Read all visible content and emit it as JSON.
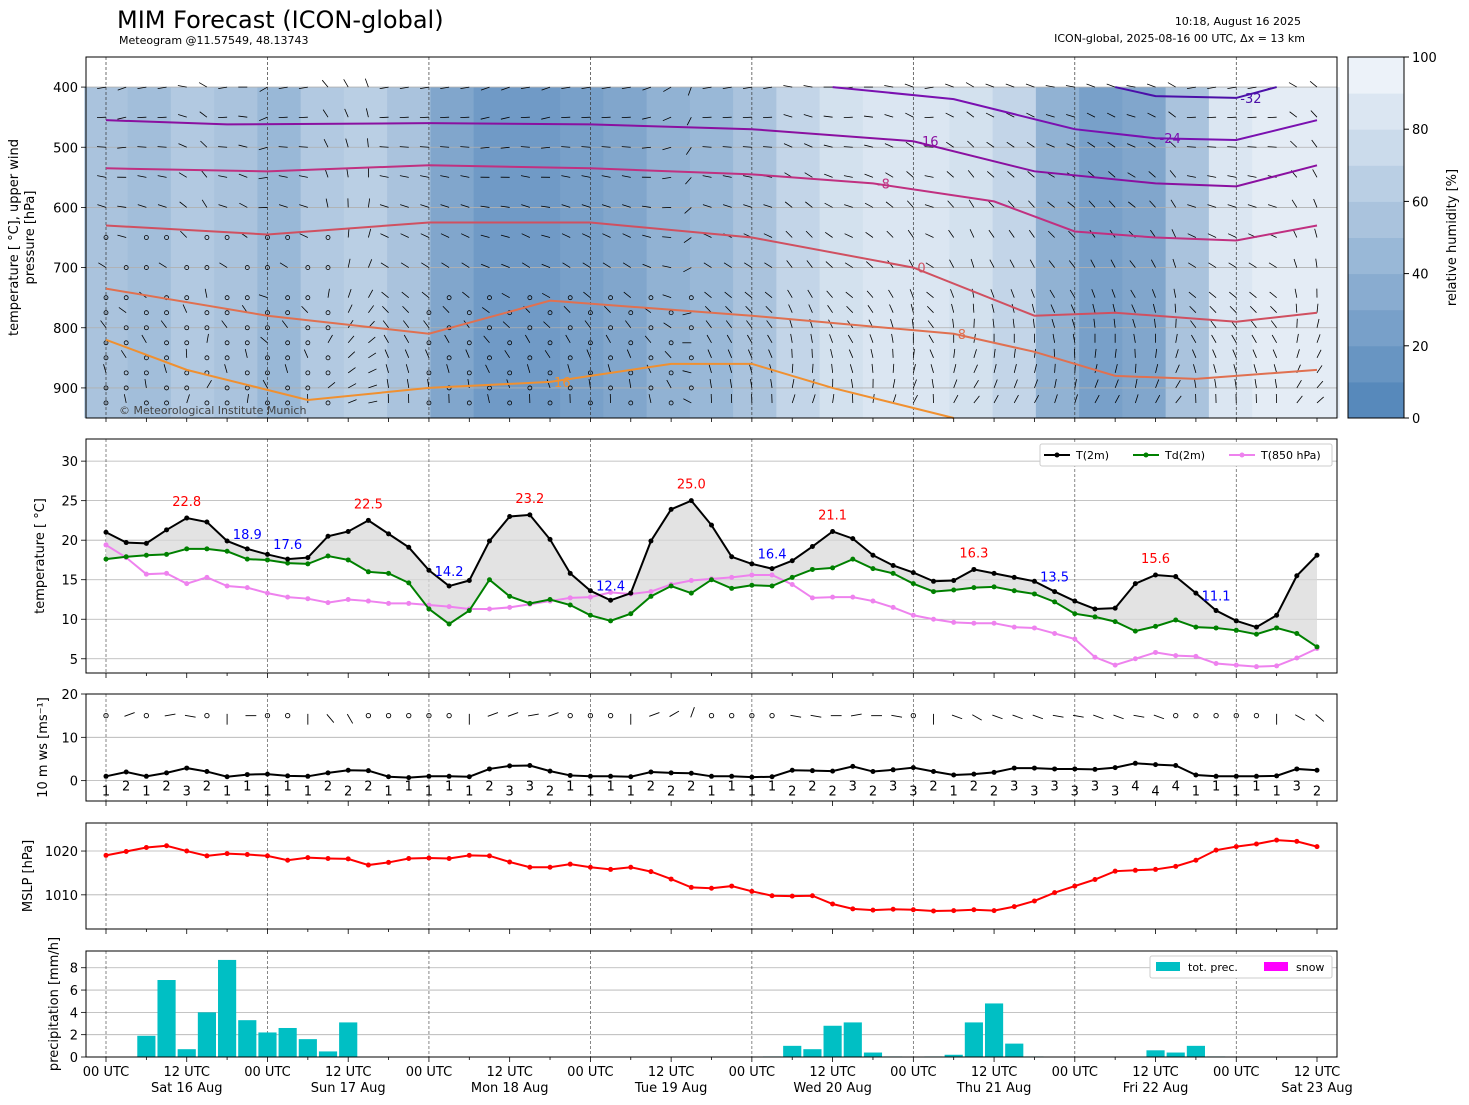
{
  "header": {
    "title": "MIM Forecast (ICON-global)",
    "subtitle": "Meteogram @11.57549, 48.13743",
    "run_time": "10:18, August 16 2025",
    "model_info": "ICON-global, 2025-08-16 00 UTC, Δx = 13 km"
  },
  "copyright": "© Meteorological Institute Munich",
  "colors": {
    "t2m": "#000000",
    "td2m": "#008000",
    "t850": "#ee82ee",
    "mslp": "#ff0000",
    "precip": "#00bfc4",
    "snow": "#ff00ff",
    "humidity_low": "#4f83b8",
    "humidity_high": "#f4f8fc",
    "max_label": "#ff0000",
    "min_label": "#0000ff"
  },
  "time_axis": {
    "tick_labels": [
      "00 UTC",
      "12 UTC",
      "00 UTC",
      "12 UTC",
      "00 UTC",
      "12 UTC",
      "00 UTC",
      "12 UTC",
      "00 UTC",
      "12 UTC",
      "00 UTC",
      "12 UTC",
      "00 UTC",
      "12 UTC",
      "00 UTC",
      "12 UTC"
    ],
    "day_labels": [
      "Sat 16 Aug",
      "Sun 17 Aug",
      "Mon 18 Aug",
      "Tue 19 Aug",
      "Wed 20 Aug",
      "Thu 21 Aug",
      "Fri 22 Aug",
      "Sat 23 Aug"
    ],
    "step_hours": 3,
    "range_hours": [
      0,
      180
    ]
  },
  "chart_data": [
    {
      "type": "heatmap",
      "ylabel": "temperature [ $^\\circ$C], upper wind\npressure [hPa]",
      "ylabel_lines": [
        "temperature [ °C], upper wind",
        "pressure [hPa]"
      ],
      "yticks": [
        400,
        500,
        600,
        700,
        800,
        900
      ],
      "ylim": [
        950,
        350
      ],
      "colorbar": {
        "label": "relative humidity [%]",
        "ticks": [
          0,
          20,
          40,
          60,
          80,
          100
        ],
        "range": [
          0,
          100
        ]
      },
      "humidity_columns": [
        55,
        50,
        60,
        55,
        45,
        60,
        65,
        55,
        30,
        20,
        20,
        25,
        30,
        40,
        45,
        55,
        70,
        80,
        85,
        85,
        80,
        70,
        40,
        25,
        30,
        55,
        85,
        90,
        90
      ],
      "isotherms": [
        {
          "label": "-32",
          "color": "#4b0fa8",
          "points": [
            [
              150,
              400
            ],
            [
              156,
              415
            ],
            [
              168,
              418
            ],
            [
              174,
              400
            ]
          ]
        },
        {
          "label": "-24",
          "color": "#7a10b0",
          "points": [
            [
              108,
              400
            ],
            [
              126,
              420
            ],
            [
              144,
              470
            ],
            [
              156,
              485
            ],
            [
              168,
              488
            ],
            [
              180,
              455
            ]
          ]
        },
        {
          "label": "-16",
          "color": "#8a10a0",
          "points": [
            [
              0,
              455
            ],
            [
              18,
              462
            ],
            [
              48,
              460
            ],
            [
              72,
              462
            ],
            [
              96,
              470
            ],
            [
              120,
              490
            ],
            [
              138,
              540
            ],
            [
              156,
              560
            ],
            [
              168,
              565
            ],
            [
              180,
              530
            ]
          ]
        },
        {
          "label": "-8",
          "color": "#c03080",
          "points": [
            [
              0,
              535
            ],
            [
              24,
              540
            ],
            [
              48,
              530
            ],
            [
              72,
              535
            ],
            [
              96,
              545
            ],
            [
              114,
              560
            ],
            [
              132,
              590
            ],
            [
              144,
              640
            ],
            [
              156,
              650
            ],
            [
              168,
              655
            ],
            [
              180,
              630
            ]
          ]
        },
        {
          "label": "0",
          "color": "#d05060",
          "points": [
            [
              0,
              630
            ],
            [
              24,
              645
            ],
            [
              48,
              625
            ],
            [
              72,
              625
            ],
            [
              96,
              650
            ],
            [
              120,
              700
            ],
            [
              138,
              780
            ],
            [
              150,
              775
            ],
            [
              168,
              790
            ],
            [
              180,
              775
            ]
          ]
        },
        {
          "label": "8",
          "color": "#e07050",
          "points": [
            [
              0,
              735
            ],
            [
              24,
              780
            ],
            [
              48,
              810
            ],
            [
              66,
              755
            ],
            [
              96,
              780
            ],
            [
              126,
              810
            ],
            [
              138,
              840
            ],
            [
              150,
              880
            ],
            [
              162,
              885
            ],
            [
              180,
              870
            ]
          ]
        },
        {
          "label": "16",
          "color": "#f09030",
          "points": [
            [
              0,
              820
            ],
            [
              12,
              870
            ],
            [
              30,
              920
            ],
            [
              48,
              900
            ],
            [
              66,
              890
            ],
            [
              84,
              860
            ],
            [
              96,
              860
            ],
            [
              108,
              900
            ],
            [
              126,
              950
            ]
          ]
        }
      ],
      "isotherm_labels": [
        "-32",
        "-24",
        "-16",
        "-8",
        "0",
        "8",
        "16",
        "16",
        "8"
      ]
    },
    {
      "type": "line",
      "ylabel": "temperature [ °C]",
      "yticks": [
        5,
        10,
        15,
        20,
        25,
        30
      ],
      "ylim": [
        3.2,
        32.8
      ],
      "x_hours_step": 3,
      "series": [
        {
          "name": "T(2m)",
          "key": "t2m",
          "values": [
            21.0,
            19.7,
            19.6,
            21.3,
            22.8,
            22.3,
            19.9,
            18.9,
            18.2,
            17.6,
            17.8,
            20.5,
            21.1,
            22.5,
            20.8,
            19.1,
            16.2,
            14.2,
            14.9,
            19.9,
            23.0,
            23.2,
            20.1,
            15.8,
            13.6,
            12.4,
            13.3,
            19.9,
            23.9,
            25.0,
            21.9,
            17.9,
            17.0,
            16.4,
            17.4,
            19.2,
            21.1,
            20.2,
            18.1,
            16.8,
            15.9,
            14.8,
            14.9,
            16.3,
            15.8,
            15.3,
            14.8,
            13.5,
            12.3,
            11.3,
            11.4,
            14.5,
            15.6,
            15.4,
            13.3,
            11.1,
            9.8,
            9.0,
            10.5,
            15.5,
            18.1
          ]
        },
        {
          "name": "Td(2m)",
          "key": "td2m",
          "values": [
            17.6,
            17.9,
            18.1,
            18.2,
            18.9,
            18.9,
            18.6,
            17.6,
            17.5,
            17.1,
            17.0,
            18.0,
            17.5,
            16.0,
            15.8,
            14.6,
            11.3,
            9.4,
            11.1,
            15.0,
            12.9,
            12.0,
            12.5,
            11.8,
            10.5,
            9.8,
            10.7,
            12.9,
            14.2,
            13.3,
            15.0,
            13.9,
            14.3,
            14.2,
            15.3,
            16.3,
            16.5,
            17.6,
            16.4,
            15.8,
            14.5,
            13.5,
            13.7,
            14.0,
            14.1,
            13.6,
            13.2,
            12.2,
            10.7,
            10.3,
            9.7,
            8.5,
            9.1,
            9.9,
            9.0,
            8.9,
            8.6,
            8.1,
            8.9,
            8.2,
            6.5
          ]
        },
        {
          "name": "T(850 hPa)",
          "key": "t850",
          "values": [
            19.4,
            17.8,
            15.7,
            15.8,
            14.5,
            15.3,
            14.2,
            14.0,
            13.3,
            12.8,
            12.6,
            12.1,
            12.5,
            12.3,
            12.0,
            12.0,
            11.8,
            11.6,
            11.3,
            11.3,
            11.5,
            11.9,
            12.3,
            12.7,
            12.8,
            13.4,
            13.2,
            13.5,
            14.4,
            14.9,
            15.1,
            15.3,
            15.6,
            15.6,
            14.4,
            12.7,
            12.8,
            12.8,
            12.3,
            11.5,
            10.5,
            10.0,
            9.6,
            9.5,
            9.5,
            9.0,
            8.9,
            8.2,
            7.5,
            5.2,
            4.2,
            5.0,
            5.8,
            5.4,
            5.3,
            4.4,
            4.2,
            4.0,
            4.1,
            5.1,
            6.3
          ]
        }
      ],
      "extrema_labels": [
        {
          "hour": 12,
          "value": 22.8,
          "kind": "max",
          "text": "22.8"
        },
        {
          "hour": 21,
          "value": 18.9,
          "kind": "min",
          "text": "18.9"
        },
        {
          "hour": 27,
          "value": 17.6,
          "kind": "min",
          "text": "17.6"
        },
        {
          "hour": 39,
          "value": 22.5,
          "kind": "max",
          "text": "22.5"
        },
        {
          "hour": 51,
          "value": 14.2,
          "kind": "min",
          "text": "14.2"
        },
        {
          "hour": 63,
          "value": 23.2,
          "kind": "max",
          "text": "23.2"
        },
        {
          "hour": 75,
          "value": 12.4,
          "kind": "min",
          "text": "12.4"
        },
        {
          "hour": 87,
          "value": 25.0,
          "kind": "max",
          "text": "25.0"
        },
        {
          "hour": 99,
          "value": 16.4,
          "kind": "min",
          "text": "16.4"
        },
        {
          "hour": 108,
          "value": 21.1,
          "kind": "max",
          "text": "21.1"
        },
        {
          "hour": 129,
          "value": 16.3,
          "kind": "max",
          "text": "16.3"
        },
        {
          "hour": 141,
          "value": 13.5,
          "kind": "min",
          "text": "13.5"
        },
        {
          "hour": 156,
          "value": 15.6,
          "kind": "max",
          "text": "15.6"
        },
        {
          "hour": 165,
          "value": 11.1,
          "kind": "min",
          "text": "11.1"
        }
      ],
      "legend": [
        "T(2m)",
        "Td(2m)",
        "T(850 hPa)"
      ]
    },
    {
      "type": "line",
      "ylabel": "10 m ws [ms⁻¹]",
      "yticks": [
        0,
        10,
        20
      ],
      "ylim": [
        -4.7,
        20
      ],
      "x_hours_step": 3,
      "series": [
        {
          "name": "",
          "values": [
            1.0,
            2.0,
            1.0,
            1.8,
            2.9,
            2.1,
            0.9,
            1.4,
            1.5,
            1.1,
            1.0,
            1.8,
            2.4,
            2.3,
            0.9,
            0.7,
            1.0,
            1.0,
            0.9,
            2.7,
            3.4,
            3.5,
            2.2,
            1.2,
            1.0,
            1.0,
            0.9,
            2.0,
            1.8,
            1.7,
            1.0,
            1.0,
            0.8,
            0.9,
            2.4,
            2.3,
            2.2,
            3.3,
            2.1,
            2.5,
            3.0,
            2.1,
            1.3,
            1.5,
            1.9,
            2.9,
            2.9,
            2.7,
            2.7,
            2.6,
            3.0,
            4.0,
            3.7,
            3.5,
            1.3,
            1.0,
            1.0,
            1.0,
            1.1,
            2.7,
            2.4
          ]
        }
      ],
      "beaufort_labels": [
        "1",
        "2",
        "1",
        "2",
        "3",
        "2",
        "1",
        "1",
        "1",
        "1",
        "1",
        "2",
        "2",
        "2",
        "1",
        "1",
        "1",
        "1",
        "1",
        "2",
        "3",
        "3",
        "2",
        "1",
        "1",
        "1",
        "1",
        "2",
        "2",
        "2",
        "1",
        "1",
        "1",
        "1",
        "2",
        "2",
        "2",
        "3",
        "2",
        "3",
        "3",
        "2",
        "1",
        "2",
        "2",
        "3",
        "3",
        "3",
        "3",
        "3",
        "3",
        "4",
        "4",
        "4",
        "1",
        "1",
        "1",
        "1",
        "1",
        "3",
        "2"
      ],
      "wind_barbs_calm": [
        true,
        false,
        true,
        false,
        false,
        true,
        false,
        false,
        true,
        true,
        false,
        false,
        false,
        true,
        true,
        true,
        true,
        true,
        false,
        false,
        false,
        false,
        false,
        true,
        true,
        true,
        false,
        false,
        false,
        false,
        true,
        true,
        true,
        true,
        false,
        false,
        false,
        false,
        false,
        false,
        true,
        false,
        false,
        false,
        false,
        false,
        false,
        false,
        false,
        false,
        false,
        false,
        false,
        true,
        true,
        true,
        true,
        true,
        false,
        false,
        false
      ],
      "wind_direction_deg": [
        0,
        250,
        0,
        260,
        280,
        300,
        0,
        270,
        240,
        0,
        0,
        320,
        330,
        340,
        0,
        0,
        0,
        0,
        0,
        250,
        250,
        260,
        250,
        0,
        0,
        0,
        0,
        250,
        240,
        200,
        0,
        0,
        0,
        0,
        280,
        280,
        270,
        260,
        270,
        280,
        290,
        0,
        290,
        300,
        290,
        290,
        290,
        280,
        280,
        290,
        290,
        280,
        290,
        300,
        0,
        0,
        0,
        0,
        0,
        300,
        310
      ]
    },
    {
      "type": "line",
      "ylabel": "MSLP [hPa]",
      "yticks": [
        1010,
        1020
      ],
      "ylim": [
        1002.2,
        1026.4
      ],
      "x_hours_step": 3,
      "series": [
        {
          "name": "",
          "values": [
            1019.0,
            1019.9,
            1020.8,
            1021.2,
            1020.0,
            1018.9,
            1019.4,
            1019.2,
            1018.9,
            1017.9,
            1018.5,
            1018.3,
            1018.2,
            1016.8,
            1017.4,
            1018.3,
            1018.4,
            1018.3,
            1019.0,
            1018.9,
            1017.5,
            1016.3,
            1016.3,
            1017.0,
            1016.3,
            1015.8,
            1016.3,
            1015.3,
            1013.6,
            1011.7,
            1011.5,
            1012.0,
            1010.8,
            1009.8,
            1009.7,
            1009.8,
            1007.9,
            1006.8,
            1006.5,
            1006.7,
            1006.6,
            1006.3,
            1006.4,
            1006.6,
            1006.4,
            1007.3,
            1008.6,
            1010.5,
            1012.0,
            1013.5,
            1015.4,
            1015.6,
            1015.8,
            1016.5,
            1017.9,
            1020.2,
            1021.0,
            1021.6,
            1022.5,
            1022.2,
            1021.0
          ]
        }
      ]
    },
    {
      "type": "bar",
      "ylabel": "precipitation [mm/h]",
      "yticks": [
        0,
        2,
        4,
        6,
        8
      ],
      "ylim": [
        0,
        9.5
      ],
      "x_hours_step": 3,
      "series": [
        {
          "name": "tot. prec.",
          "values": [
            0,
            0,
            1.9,
            6.9,
            0.7,
            4.0,
            8.7,
            3.3,
            2.2,
            2.6,
            1.6,
            0.5,
            3.1,
            0,
            0,
            0,
            0,
            0,
            0,
            0,
            0,
            0,
            0,
            0,
            0,
            0,
            0,
            0,
            0,
            0,
            0,
            0,
            0,
            0.05,
            1.0,
            0.7,
            2.8,
            3.1,
            0.4,
            0.05,
            0,
            0.05,
            0.2,
            3.1,
            4.8,
            1.2,
            0.05,
            0,
            0,
            0,
            0,
            0,
            0.6,
            0.4,
            1.0,
            0.05,
            0,
            0,
            0,
            0
          ]
        },
        {
          "name": "snow",
          "values": []
        }
      ],
      "legend": [
        "tot. prec.",
        "snow"
      ]
    }
  ]
}
